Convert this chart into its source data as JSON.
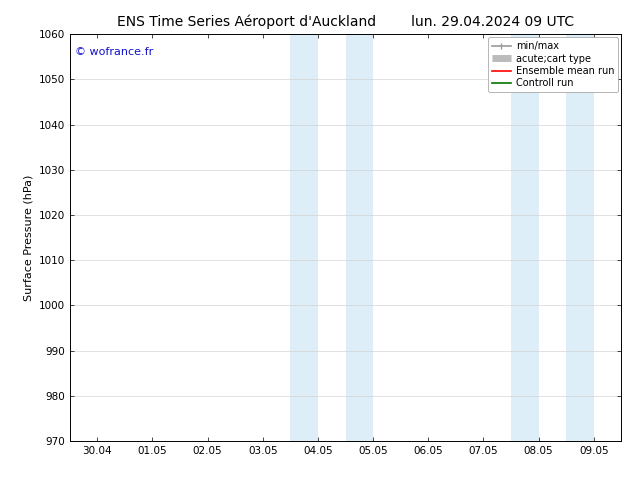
{
  "title_left": "ENS Time Series Aéroport d'Auckland",
  "title_right": "lun. 29.04.2024 09 UTC",
  "ylabel": "Surface Pressure (hPa)",
  "ylim": [
    970,
    1060
  ],
  "yticks": [
    970,
    980,
    990,
    1000,
    1010,
    1020,
    1030,
    1040,
    1050,
    1060
  ],
  "xtick_labels": [
    "30.04",
    "01.05",
    "02.05",
    "03.05",
    "04.05",
    "05.05",
    "06.05",
    "07.05",
    "08.05",
    "09.05"
  ],
  "xtick_positions": [
    0,
    1,
    2,
    3,
    4,
    5,
    6,
    7,
    8,
    9
  ],
  "shaded_regions": [
    {
      "xmin": 3.5,
      "xmax": 4.0,
      "color": "#ddeef8"
    },
    {
      "xmin": 4.5,
      "xmax": 5.0,
      "color": "#ddeef8"
    },
    {
      "xmin": 7.5,
      "xmax": 8.0,
      "color": "#ddeef8"
    },
    {
      "xmin": 8.5,
      "xmax": 9.0,
      "color": "#ddeef8"
    }
  ],
  "watermark": "© wofrance.fr",
  "watermark_color": "#1111cc",
  "background_color": "#ffffff",
  "plot_bg_color": "#ffffff",
  "border_color": "#000000",
  "legend_entries": [
    {
      "label": "min/max",
      "color": "#999999",
      "lw": 1.2,
      "style": "minmax"
    },
    {
      "label": "acute;cart type",
      "color": "#bbbbbb",
      "lw": 5,
      "style": "thick"
    },
    {
      "label": "Ensemble mean run",
      "color": "#ff0000",
      "lw": 1.2,
      "style": "line"
    },
    {
      "label": "Controll run",
      "color": "#007700",
      "lw": 1.2,
      "style": "line"
    }
  ],
  "title_fontsize": 10,
  "axis_fontsize": 8,
  "tick_fontsize": 7.5,
  "legend_fontsize": 7,
  "watermark_fontsize": 8
}
